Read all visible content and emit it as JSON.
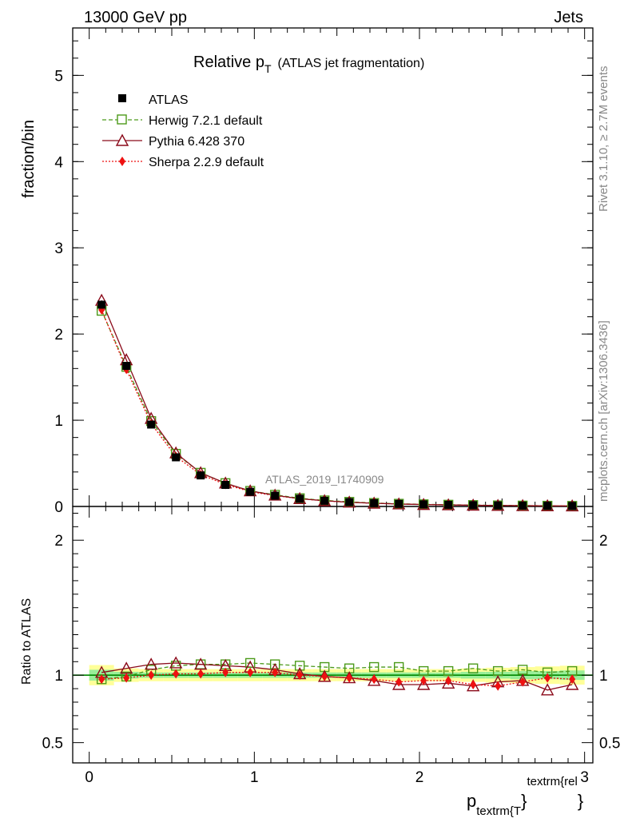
{
  "header": {
    "energy": "13000 GeV pp",
    "process": "Jets"
  },
  "title": {
    "main": "Relative p",
    "sub": "T",
    "suffix": "(ATLAS jet fragmentation)"
  },
  "side": {
    "rivet": "Rivet 3.1.10, ≥ 2.7M events",
    "mcplots": "mcplots.cern.ch [arXiv:1306.3436]"
  },
  "watermark": "ATLAS_2019_I1740909",
  "xaxis": {
    "base": "p",
    "sub": "textrm{T",
    "close": "}",
    "sup": "textrm{rel",
    "close2": "}"
  },
  "chart_data": [
    {
      "type": "line",
      "panel": "main",
      "ylabel": "fraction/bin",
      "xlim": [
        -0.1,
        3.05
      ],
      "ylim": [
        0,
        5.55
      ],
      "x_ticks": [
        0,
        1,
        2,
        3
      ],
      "y_ticks": [
        0,
        1,
        2,
        3,
        4,
        5
      ],
      "x": [
        0.075,
        0.225,
        0.375,
        0.525,
        0.675,
        0.825,
        0.975,
        1.125,
        1.275,
        1.425,
        1.575,
        1.725,
        1.875,
        2.025,
        2.175,
        2.325,
        2.475,
        2.625,
        2.775,
        2.925
      ],
      "series": [
        {
          "name": "ATLAS",
          "style": "data",
          "color": "#000000",
          "values": [
            2.34,
            1.63,
            0.95,
            0.57,
            0.36,
            0.25,
            0.17,
            0.125,
            0.09,
            0.066,
            0.05,
            0.038,
            0.03,
            0.024,
            0.019,
            0.015,
            0.012,
            0.01,
            0.008,
            0.006
          ]
        },
        {
          "name": "Herwig 7.2.1 default",
          "style": "dashed-open-square",
          "color": "#4c9a1a",
          "values": [
            2.27,
            1.62,
            0.99,
            0.61,
            0.39,
            0.27,
            0.18,
            0.135,
            0.095,
            0.07,
            0.053,
            0.04,
            0.031,
            0.025,
            0.02,
            0.016,
            0.012,
            0.01,
            0.008,
            0.006
          ]
        },
        {
          "name": "Pythia 6.428 370",
          "style": "solid-open-triangle",
          "color": "#8b0a1a",
          "values": [
            2.39,
            1.7,
            1.02,
            0.62,
            0.39,
            0.27,
            0.18,
            0.13,
            0.09,
            0.066,
            0.049,
            0.037,
            0.028,
            0.022,
            0.018,
            0.014,
            0.011,
            0.009,
            0.007,
            0.0055
          ]
        },
        {
          "name": "Sherpa 2.2.9 default",
          "style": "dotted-diamond",
          "color": "#ee1111",
          "values": [
            2.28,
            1.59,
            0.96,
            0.58,
            0.37,
            0.255,
            0.172,
            0.126,
            0.09,
            0.065,
            0.049,
            0.037,
            0.029,
            0.023,
            0.018,
            0.014,
            0.011,
            0.0095,
            0.0078,
            0.006
          ]
        }
      ]
    },
    {
      "type": "line",
      "panel": "ratio",
      "ylabel": "Ratio to ATLAS",
      "xlim": [
        -0.1,
        3.05
      ],
      "ylim": [
        0.35,
        2.25
      ],
      "y_ticks": [
        0.5,
        1,
        2
      ],
      "y_tick_labels": [
        "0.5",
        "1",
        "2"
      ],
      "band_yellow": [
        0.075,
        0.05,
        0.045,
        0.045,
        0.045,
        0.045,
        0.045,
        0.045,
        0.045,
        0.045,
        0.045,
        0.045,
        0.045,
        0.045,
        0.045,
        0.05,
        0.055,
        0.06,
        0.065,
        0.07
      ],
      "band_green": [
        0.04,
        0.025,
        0.02,
        0.02,
        0.02,
        0.02,
        0.02,
        0.02,
        0.02,
        0.02,
        0.02,
        0.02,
        0.02,
        0.02,
        0.02,
        0.025,
        0.025,
        0.03,
        0.03,
        0.035
      ],
      "series": [
        {
          "name": "Herwig 7.2.1 default",
          "values": [
            0.97,
            0.99,
            1.04,
            1.07,
            1.08,
            1.08,
            1.09,
            1.08,
            1.07,
            1.06,
            1.05,
            1.06,
            1.06,
            1.03,
            1.03,
            1.05,
            1.03,
            1.04,
            1.02,
            1.03
          ]
        },
        {
          "name": "Pythia 6.428 370",
          "values": [
            1.02,
            1.05,
            1.08,
            1.09,
            1.08,
            1.07,
            1.06,
            1.04,
            1.01,
            0.99,
            0.98,
            0.96,
            0.93,
            0.93,
            0.94,
            0.92,
            0.95,
            0.96,
            0.89,
            0.93
          ]
        },
        {
          "name": "Sherpa 2.2.9 default",
          "values": [
            0.97,
            0.98,
            1.0,
            1.01,
            1.01,
            1.02,
            1.02,
            1.02,
            1.0,
            0.99,
            0.98,
            0.97,
            0.95,
            0.96,
            0.96,
            0.93,
            0.92,
            0.95,
            0.98,
            0.97
          ]
        }
      ]
    }
  ]
}
